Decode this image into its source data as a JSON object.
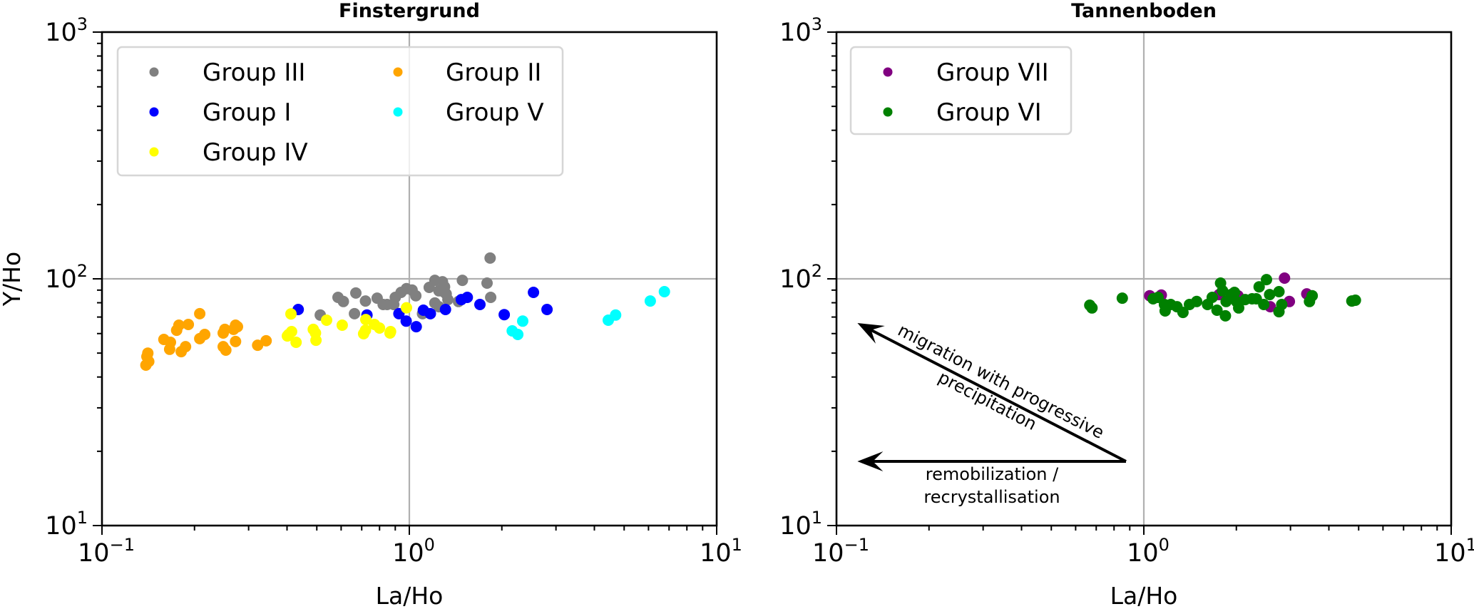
{
  "chart_data": [
    {
      "type": "scatter",
      "title": "Finstergrund",
      "xlabel": "La/Ho",
      "ylabel": "Y/Ho",
      "xscale": "log",
      "yscale": "log",
      "xlim": [
        0.1,
        10
      ],
      "ylim": [
        10,
        1000
      ],
      "xticks": [
        {
          "value": 0.1,
          "base": "10",
          "exp": "−1"
        },
        {
          "value": 1,
          "base": "10",
          "exp": "0"
        },
        {
          "value": 10,
          "base": "10",
          "exp": "1"
        }
      ],
      "yticks": [
        {
          "value": 10,
          "base": "10",
          "exp": "1"
        },
        {
          "value": 100,
          "base": "10",
          "exp": "2"
        },
        {
          "value": 1000,
          "base": "10",
          "exp": "3"
        }
      ],
      "reference_lines": {
        "x": 1,
        "y": 100
      },
      "legend": {
        "position": "upper-left",
        "columns": 2,
        "order": [
          "Group III",
          "Group I",
          "Group IV",
          "Group II",
          "Group V"
        ]
      },
      "series": [
        {
          "name": "Group III",
          "color": "#808080",
          "points": [
            [
              0.586,
              84.1
            ],
            [
              0.61,
              80.9
            ],
            [
              0.67,
              87.6
            ],
            [
              0.72,
              81.3
            ],
            [
              0.786,
              83.5
            ],
            [
              0.822,
              78.7
            ],
            [
              0.513,
              71.3
            ],
            [
              0.663,
              72.2
            ],
            [
              0.89,
              78.7
            ],
            [
              0.847,
              78.7
            ],
            [
              0.9,
              84.1
            ],
            [
              0.94,
              88.1
            ],
            [
              0.979,
              91.2
            ],
            [
              1.021,
              90.0
            ],
            [
              1.05,
              85.4
            ],
            [
              1.161,
              92.3
            ],
            [
              1.211,
              98.6
            ],
            [
              1.282,
              97.3
            ],
            [
              1.302,
              92.8
            ],
            [
              1.248,
              89.4
            ],
            [
              1.302,
              88.1
            ],
            [
              1.211,
              79.8
            ],
            [
              1.335,
              82.4
            ],
            [
              1.104,
              72.2
            ],
            [
              1.488,
              98.6
            ],
            [
              1.445,
              80.9
            ],
            [
              1.248,
              77.1
            ],
            [
              1.318,
              86.9
            ],
            [
              1.79,
              96.1
            ],
            [
              1.832,
              121.4
            ],
            [
              1.84,
              84.1
            ]
          ]
        },
        {
          "name": "Group I",
          "color": "#0000ff",
          "points": [
            [
              0.435,
              75.1
            ],
            [
              0.728,
              71.3
            ],
            [
              0.925,
              72.2
            ],
            [
              0.977,
              67.4
            ],
            [
              1.053,
              64.0
            ],
            [
              1.111,
              74.6
            ],
            [
              1.171,
              72.2
            ],
            [
              1.311,
              75.1
            ],
            [
              1.476,
              82.4
            ],
            [
              1.544,
              84.1
            ],
            [
              1.697,
              78.7
            ],
            [
              2.036,
              71.6
            ],
            [
              2.535,
              88.1
            ],
            [
              2.806,
              75.1
            ]
          ]
        },
        {
          "name": "Group IV",
          "color": "#ffff00",
          "points": [
            [
              0.412,
              72.1
            ],
            [
              0.414,
              61.1
            ],
            [
              0.401,
              58.7
            ],
            [
              0.428,
              55.3
            ],
            [
              0.405,
              59.5
            ],
            [
              0.487,
              62.4
            ],
            [
              0.495,
              60.3
            ],
            [
              0.497,
              56.4
            ],
            [
              0.538,
              68.0
            ],
            [
              0.605,
              64.9
            ],
            [
              0.722,
              68.4
            ],
            [
              0.77,
              65.3
            ],
            [
              0.8,
              63.2
            ],
            [
              0.72,
              61.9
            ],
            [
              0.71,
              59.9
            ],
            [
              0.865,
              60.3
            ],
            [
              0.979,
              76.3
            ],
            [
              0.869,
              61.1
            ]
          ]
        },
        {
          "name": "Group II",
          "color": "#ffa500",
          "points": [
            [
              0.141,
              50.0
            ],
            [
              0.14,
              48.4
            ],
            [
              0.142,
              46.2
            ],
            [
              0.139,
              44.7
            ],
            [
              0.159,
              56.8
            ],
            [
              0.167,
              55.3
            ],
            [
              0.166,
              51.8
            ],
            [
              0.178,
              64.9
            ],
            [
              0.175,
              61.9
            ],
            [
              0.191,
              65.3
            ],
            [
              0.208,
              72.2
            ],
            [
              0.187,
              53.1
            ],
            [
              0.181,
              50.7
            ],
            [
              0.208,
              57.2
            ],
            [
              0.216,
              59.5
            ],
            [
              0.251,
              62.4
            ],
            [
              0.248,
              60.3
            ],
            [
              0.248,
              53.1
            ],
            [
              0.253,
              51.4
            ],
            [
              0.272,
              64.9
            ],
            [
              0.268,
              62.4
            ],
            [
              0.276,
              64.0
            ],
            [
              0.272,
              55.7
            ],
            [
              0.321,
              53.8
            ],
            [
              0.342,
              56.1
            ]
          ]
        },
        {
          "name": "Group V",
          "color": "#00ffff",
          "points": [
            [
              2.338,
              67.4
            ],
            [
              2.162,
              61.5
            ],
            [
              2.254,
              59.5
            ],
            [
              4.69,
              71.3
            ],
            [
              4.44,
              68.0
            ],
            [
              6.08,
              81.3
            ],
            [
              6.76,
              88.7
            ]
          ]
        }
      ]
    },
    {
      "type": "scatter",
      "title": "Tannenboden",
      "xlabel": "La/Ho",
      "ylabel": "",
      "xscale": "log",
      "yscale": "log",
      "xlim": [
        0.1,
        10
      ],
      "ylim": [
        10,
        1000
      ],
      "xticks": [
        {
          "value": 0.1,
          "base": "10",
          "exp": "−1"
        },
        {
          "value": 1,
          "base": "10",
          "exp": "0"
        },
        {
          "value": 10,
          "base": "10",
          "exp": "1"
        }
      ],
      "yticks": [
        {
          "value": 10,
          "base": "10",
          "exp": "1"
        },
        {
          "value": 100,
          "base": "10",
          "exp": "2"
        },
        {
          "value": 1000,
          "base": "10",
          "exp": "3"
        }
      ],
      "reference_lines": {
        "x": 1,
        "y": 100
      },
      "legend": {
        "position": "upper-left",
        "columns": 1,
        "order": [
          "Group VII",
          "Group VI"
        ]
      },
      "series": [
        {
          "name": "Group VII",
          "color": "#800080",
          "points": [
            [
              1.045,
              85.4
            ],
            [
              1.14,
              85.9
            ],
            [
              1.757,
              86.3
            ],
            [
              2.024,
              85.4
            ],
            [
              2.578,
              77.1
            ],
            [
              2.87,
              100.7
            ],
            [
              2.975,
              80.9
            ],
            [
              3.39,
              86.9
            ]
          ]
        },
        {
          "name": "Group VI",
          "color": "#008000",
          "points": [
            [
              0.667,
              78.2
            ],
            [
              0.678,
              76.2
            ],
            [
              0.851,
              83.5
            ],
            [
              1.072,
              83.0
            ],
            [
              1.113,
              84.1
            ],
            [
              1.167,
              78.7
            ],
            [
              1.173,
              74.1
            ],
            [
              1.223,
              78.7
            ],
            [
              1.282,
              77.1
            ],
            [
              1.341,
              73.1
            ],
            [
              1.408,
              78.7
            ],
            [
              1.486,
              80.9
            ],
            [
              1.611,
              78.7
            ],
            [
              1.669,
              84.1
            ],
            [
              1.73,
              74.6
            ],
            [
              1.777,
              96.1
            ],
            [
              1.804,
              89.4
            ],
            [
              1.843,
              70.8
            ],
            [
              1.852,
              80.9
            ],
            [
              1.92,
              86.3
            ],
            [
              1.972,
              88.1
            ],
            [
              2.003,
              80.9
            ],
            [
              2.035,
              76.2
            ],
            [
              2.136,
              82.4
            ],
            [
              2.25,
              83.0
            ],
            [
              2.322,
              83.0
            ],
            [
              2.372,
              92.8
            ],
            [
              2.507,
              99.3
            ],
            [
              2.566,
              86.3
            ],
            [
              2.456,
              78.7
            ],
            [
              2.752,
              88.7
            ],
            [
              2.81,
              78.7
            ],
            [
              2.752,
              73.6
            ],
            [
              3.53,
              85.4
            ],
            [
              3.46,
              80.9
            ],
            [
              4.75,
              81.3
            ],
            [
              4.88,
              81.9
            ]
          ]
        }
      ],
      "annotations": [
        {
          "text_lines": [
            "migration with progressive",
            "precipitation"
          ],
          "from": [
            0.875,
            18.2
          ],
          "to": [
            0.117,
            66.2
          ]
        },
        {
          "text_lines": [
            "remobilization /",
            "recrystallisation"
          ],
          "from": [
            0.875,
            18.2
          ],
          "to": [
            0.117,
            18.2
          ]
        }
      ]
    }
  ]
}
